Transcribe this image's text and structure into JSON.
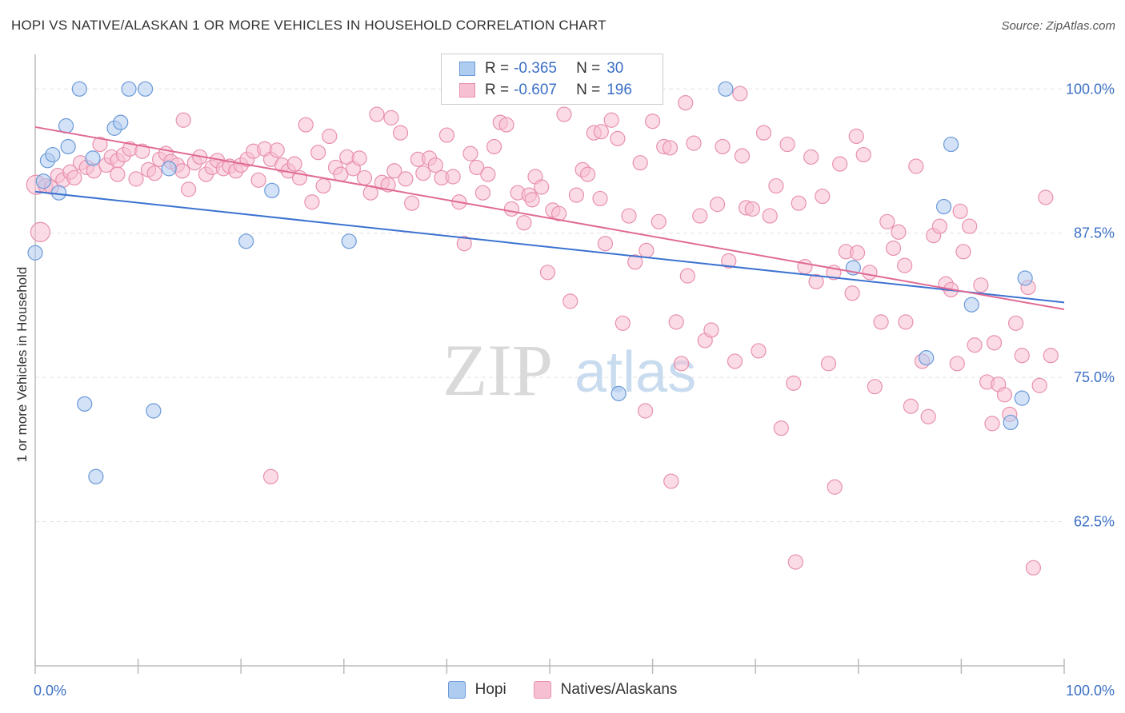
{
  "header": {
    "title": "HOPI VS NATIVE/ALASKAN 1 OR MORE VEHICLES IN HOUSEHOLD CORRELATION CHART",
    "source": "Source: ZipAtlas.com"
  },
  "watermark": {
    "zip": "ZIP",
    "atlas": "atlas"
  },
  "legend": {
    "hopi": {
      "r_label": "R =",
      "r_value": "-0.365",
      "n_label": "N =",
      "n_value": "30"
    },
    "natives": {
      "r_label": "R =",
      "r_value": "-0.607",
      "n_label": "N =",
      "n_value": "196"
    }
  },
  "bottom_legend": {
    "hopi": "Hopi",
    "natives": "Natives/Alaskans"
  },
  "colors": {
    "hopi_fill": "#aecbf0",
    "hopi_stroke": "#6a9ad8",
    "hopi_line": "#3b72d0",
    "natives_fill": "#f7c0d2",
    "natives_stroke": "#e890ae",
    "natives_line": "#e06a95",
    "tick_text": "#3b6fc4",
    "grid": "#e2e2e2"
  },
  "chart_data": {
    "type": "scatter",
    "title": "HOPI VS NATIVE/ALASKAN 1 OR MORE VEHICLES IN HOUSEHOLD CORRELATION CHART",
    "xlabel": "",
    "ylabel": "1 or more Vehicles in Household",
    "xlim": [
      0,
      100
    ],
    "ylim": [
      50,
      103
    ],
    "x_tick_labels": [
      "0.0%",
      "100.0%"
    ],
    "y_ticks": [
      62.5,
      75.0,
      87.5,
      100.0
    ],
    "y_tick_labels": [
      "62.5%",
      "75.0%",
      "87.5%",
      "100.0%"
    ],
    "grid": true,
    "legend_position": "top-center",
    "series": [
      {
        "name": "Hopi",
        "trend": [
          [
            0,
            91.1
          ],
          [
            100,
            81.5
          ]
        ],
        "points": [
          [
            0.0,
            85.8
          ],
          [
            0.8,
            92.0
          ],
          [
            1.2,
            93.8
          ],
          [
            1.7,
            94.3
          ],
          [
            2.3,
            91.0
          ],
          [
            3.0,
            96.8
          ],
          [
            3.2,
            95.0
          ],
          [
            4.3,
            100.0
          ],
          [
            4.8,
            72.7
          ],
          [
            5.6,
            94.0
          ],
          [
            5.9,
            66.4
          ],
          [
            7.7,
            96.6
          ],
          [
            8.3,
            97.1
          ],
          [
            9.1,
            100.0
          ],
          [
            10.7,
            100.0
          ],
          [
            11.5,
            72.1
          ],
          [
            13.0,
            93.1
          ],
          [
            20.5,
            86.8
          ],
          [
            23.0,
            91.2
          ],
          [
            30.5,
            86.8
          ],
          [
            56.7,
            73.6
          ],
          [
            67.1,
            100.0
          ],
          [
            79.5,
            84.5
          ],
          [
            86.6,
            76.7
          ],
          [
            88.3,
            89.8
          ],
          [
            89.0,
            95.2
          ],
          [
            91.0,
            81.3
          ],
          [
            94.8,
            71.1
          ],
          [
            95.9,
            73.2
          ],
          [
            96.2,
            83.6
          ]
        ]
      },
      {
        "name": "Natives/Alaskans",
        "trend": [
          [
            0,
            96.7
          ],
          [
            100,
            80.9
          ]
        ],
        "points": [
          [
            0.1,
            91.7
          ],
          [
            0.5,
            87.6
          ],
          [
            1.0,
            91.6
          ],
          [
            1.6,
            91.5
          ],
          [
            2.2,
            92.5
          ],
          [
            2.7,
            92.1
          ],
          [
            3.4,
            92.8
          ],
          [
            3.8,
            92.3
          ],
          [
            4.4,
            93.6
          ],
          [
            5.0,
            93.2
          ],
          [
            5.7,
            92.9
          ],
          [
            6.3,
            95.2
          ],
          [
            6.9,
            93.4
          ],
          [
            7.4,
            94.1
          ],
          [
            8.0,
            93.8
          ],
          [
            8.6,
            94.3
          ],
          [
            9.2,
            94.8
          ],
          [
            9.8,
            92.2
          ],
          [
            10.4,
            94.6
          ],
          [
            11.0,
            93.0
          ],
          [
            11.6,
            92.7
          ],
          [
            12.1,
            93.9
          ],
          [
            12.7,
            94.4
          ],
          [
            13.2,
            93.7
          ],
          [
            13.8,
            93.4
          ],
          [
            14.3,
            92.9
          ],
          [
            14.9,
            91.3
          ],
          [
            15.5,
            93.6
          ],
          [
            16.0,
            94.1
          ],
          [
            16.6,
            92.6
          ],
          [
            17.2,
            93.2
          ],
          [
            17.7,
            93.8
          ],
          [
            18.3,
            93.1
          ],
          [
            18.9,
            93.3
          ],
          [
            19.5,
            92.9
          ],
          [
            20.0,
            93.4
          ],
          [
            20.6,
            93.9
          ],
          [
            21.2,
            94.6
          ],
          [
            21.7,
            92.1
          ],
          [
            22.3,
            94.8
          ],
          [
            22.9,
            93.9
          ],
          [
            23.5,
            94.7
          ],
          [
            24.0,
            93.4
          ],
          [
            24.6,
            92.9
          ],
          [
            25.2,
            93.5
          ],
          [
            25.7,
            92.3
          ],
          [
            26.3,
            96.9
          ],
          [
            26.9,
            90.2
          ],
          [
            27.5,
            94.5
          ],
          [
            28.0,
            91.6
          ],
          [
            28.6,
            95.9
          ],
          [
            29.2,
            93.2
          ],
          [
            29.7,
            92.6
          ],
          [
            30.3,
            94.1
          ],
          [
            30.9,
            93.1
          ],
          [
            31.5,
            94.0
          ],
          [
            32.0,
            92.3
          ],
          [
            32.6,
            91.0
          ],
          [
            33.2,
            97.8
          ],
          [
            33.7,
            91.9
          ],
          [
            34.3,
            91.7
          ],
          [
            34.9,
            92.9
          ],
          [
            35.5,
            96.2
          ],
          [
            36.0,
            92.2
          ],
          [
            36.6,
            90.1
          ],
          [
            37.2,
            93.9
          ],
          [
            37.7,
            92.7
          ],
          [
            38.3,
            94.0
          ],
          [
            38.9,
            93.4
          ],
          [
            39.5,
            92.3
          ],
          [
            40.0,
            96.0
          ],
          [
            40.6,
            92.4
          ],
          [
            41.2,
            90.2
          ],
          [
            41.7,
            86.6
          ],
          [
            42.3,
            94.4
          ],
          [
            42.9,
            93.2
          ],
          [
            43.5,
            91.0
          ],
          [
            44.0,
            92.6
          ],
          [
            44.6,
            95.0
          ],
          [
            45.2,
            97.1
          ],
          [
            45.8,
            96.9
          ],
          [
            46.3,
            89.6
          ],
          [
            46.9,
            91.0
          ],
          [
            47.5,
            88.4
          ],
          [
            48.0,
            90.8
          ],
          [
            48.6,
            92.4
          ],
          [
            49.2,
            91.5
          ],
          [
            49.8,
            84.1
          ],
          [
            50.3,
            89.5
          ],
          [
            50.9,
            89.2
          ],
          [
            51.4,
            97.8
          ],
          [
            52.0,
            81.6
          ],
          [
            52.6,
            90.8
          ],
          [
            53.2,
            93.0
          ],
          [
            53.7,
            92.6
          ],
          [
            54.3,
            96.2
          ],
          [
            54.9,
            90.5
          ],
          [
            55.4,
            86.6
          ],
          [
            56.0,
            97.3
          ],
          [
            56.6,
            95.7
          ],
          [
            57.1,
            79.7
          ],
          [
            57.7,
            89.0
          ],
          [
            58.3,
            85.0
          ],
          [
            58.8,
            93.6
          ],
          [
            59.4,
            86.0
          ],
          [
            60.0,
            97.2
          ],
          [
            60.6,
            88.5
          ],
          [
            61.1,
            95.0
          ],
          [
            61.7,
            94.9
          ],
          [
            62.3,
            79.8
          ],
          [
            62.8,
            76.2
          ],
          [
            63.4,
            83.8
          ],
          [
            64.0,
            95.3
          ],
          [
            64.6,
            89.0
          ],
          [
            65.1,
            78.2
          ],
          [
            65.7,
            79.1
          ],
          [
            66.3,
            90.0
          ],
          [
            66.8,
            95.0
          ],
          [
            67.4,
            85.1
          ],
          [
            68.0,
            76.4
          ],
          [
            68.5,
            99.6
          ],
          [
            69.1,
            89.7
          ],
          [
            69.7,
            89.6
          ],
          [
            70.3,
            77.3
          ],
          [
            70.8,
            96.2
          ],
          [
            71.4,
            89.0
          ],
          [
            72.0,
            91.6
          ],
          [
            72.5,
            70.6
          ],
          [
            73.1,
            95.2
          ],
          [
            73.7,
            74.5
          ],
          [
            74.2,
            90.1
          ],
          [
            74.8,
            84.6
          ],
          [
            75.4,
            94.1
          ],
          [
            75.9,
            83.3
          ],
          [
            76.5,
            90.7
          ],
          [
            77.1,
            76.2
          ],
          [
            77.7,
            65.5
          ],
          [
            78.2,
            93.5
          ],
          [
            78.8,
            85.9
          ],
          [
            79.4,
            82.3
          ],
          [
            79.9,
            85.8
          ],
          [
            80.5,
            94.3
          ],
          [
            81.1,
            84.1
          ],
          [
            81.6,
            74.2
          ],
          [
            82.2,
            79.8
          ],
          [
            82.8,
            88.5
          ],
          [
            83.4,
            86.2
          ],
          [
            83.9,
            87.6
          ],
          [
            84.5,
            84.7
          ],
          [
            85.1,
            72.5
          ],
          [
            85.6,
            93.3
          ],
          [
            86.2,
            76.4
          ],
          [
            86.8,
            71.6
          ],
          [
            87.3,
            87.3
          ],
          [
            87.9,
            88.1
          ],
          [
            88.5,
            83.1
          ],
          [
            89.0,
            82.6
          ],
          [
            89.6,
            76.2
          ],
          [
            90.2,
            85.9
          ],
          [
            90.8,
            88.1
          ],
          [
            91.3,
            77.8
          ],
          [
            91.9,
            83.0
          ],
          [
            92.5,
            74.6
          ],
          [
            93.0,
            71.0
          ],
          [
            93.6,
            74.4
          ],
          [
            94.2,
            73.5
          ],
          [
            94.7,
            71.8
          ],
          [
            95.3,
            79.7
          ],
          [
            95.9,
            76.9
          ],
          [
            96.5,
            82.8
          ],
          [
            97.0,
            58.5
          ],
          [
            97.6,
            74.3
          ],
          [
            98.2,
            90.6
          ],
          [
            98.7,
            76.9
          ],
          [
            8.0,
            92.6
          ],
          [
            14.4,
            97.3
          ],
          [
            22.9,
            66.4
          ],
          [
            34.6,
            97.5
          ],
          [
            48.3,
            90.4
          ],
          [
            55.0,
            96.3
          ],
          [
            59.3,
            72.1
          ],
          [
            61.8,
            66.0
          ],
          [
            63.2,
            98.8
          ],
          [
            68.7,
            94.2
          ],
          [
            73.9,
            59.0
          ],
          [
            77.6,
            84.1
          ],
          [
            79.8,
            95.9
          ],
          [
            84.6,
            79.8
          ],
          [
            89.9,
            89.4
          ],
          [
            93.2,
            78.0
          ]
        ]
      }
    ]
  }
}
